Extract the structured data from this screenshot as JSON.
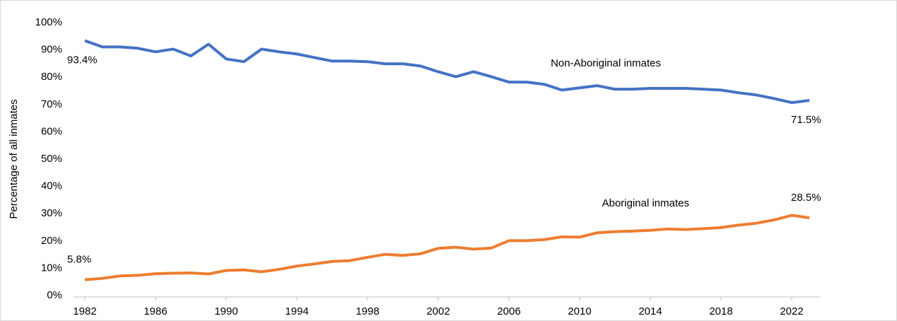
{
  "chart_data": {
    "type": "line",
    "y_label": "Percentage of all inmates",
    "x": [
      1982,
      1983,
      1984,
      1985,
      1986,
      1987,
      1988,
      1989,
      1990,
      1991,
      1992,
      1993,
      1994,
      1995,
      1996,
      1997,
      1998,
      1999,
      2000,
      2001,
      2002,
      2003,
      2004,
      2005,
      2006,
      2007,
      2008,
      2009,
      2010,
      2011,
      2012,
      2013,
      2014,
      2015,
      2016,
      2017,
      2018,
      2019,
      2020,
      2021,
      2022,
      2023
    ],
    "series": [
      {
        "name": "Non-Aboriginal inmates",
        "color": "#4472c4",
        "values": [
          93.4,
          91.1,
          91.1,
          90.6,
          89.3,
          90.3,
          87.8,
          92.1,
          86.7,
          85.7,
          90.3,
          89.3,
          88.5,
          87.2,
          85.9,
          85.9,
          85.7,
          84.9,
          84.9,
          84.1,
          82.0,
          80.2,
          82.0,
          80.2,
          78.2,
          78.2,
          77.4,
          75.3,
          76.1,
          76.9,
          75.6,
          75.6,
          75.9,
          75.9,
          75.9,
          75.6,
          75.3,
          74.3,
          73.5,
          72.2,
          70.7,
          71.5
        ],
        "value_labels": [
          "93.4%",
          null,
          null,
          null,
          null,
          null,
          null,
          null,
          null,
          null,
          null,
          null,
          null,
          null,
          null,
          null,
          null,
          null,
          null,
          null,
          null,
          null,
          null,
          null,
          null,
          null,
          null,
          null,
          null,
          null,
          null,
          null,
          null,
          null,
          null,
          null,
          null,
          null,
          null,
          null,
          null,
          "71.5%"
        ]
      },
      {
        "name": "Aboriginal inmates",
        "color": "#ed7d31",
        "values": [
          5.8,
          6.3,
          7.2,
          7.4,
          8.0,
          8.2,
          8.3,
          7.9,
          9.2,
          9.4,
          8.7,
          9.6,
          10.8,
          11.6,
          12.5,
          12.8,
          14.0,
          15.1,
          14.7,
          15.3,
          17.3,
          17.7,
          17.0,
          17.4,
          20.1,
          20.1,
          20.5,
          21.5,
          21.4,
          23.0,
          23.4,
          23.6,
          23.9,
          24.4,
          24.2,
          24.5,
          24.9,
          25.8,
          26.5,
          27.7,
          29.4,
          28.5
        ],
        "value_labels": [
          "5.8%",
          null,
          null,
          null,
          null,
          null,
          null,
          null,
          null,
          null,
          null,
          null,
          null,
          null,
          null,
          null,
          null,
          null,
          null,
          null,
          null,
          null,
          null,
          null,
          null,
          null,
          null,
          null,
          null,
          null,
          null,
          null,
          null,
          null,
          null,
          null,
          null,
          null,
          null,
          null,
          null,
          "28.5%"
        ]
      }
    ],
    "xlim": [
      1981.4,
      2023.6
    ],
    "xticks": [
      1982,
      1986,
      1990,
      1994,
      1998,
      2002,
      2006,
      2010,
      2014,
      2018,
      2022
    ],
    "ylim": [
      0,
      100
    ],
    "yticks": [
      {
        "value": 0,
        "label": "0%"
      },
      {
        "value": 10,
        "label": "10%"
      },
      {
        "value": 20,
        "label": "20%"
      },
      {
        "value": 30,
        "label": "30%"
      },
      {
        "value": 40,
        "label": "40%"
      },
      {
        "value": 50,
        "label": "50%"
      },
      {
        "value": 60,
        "label": "60%"
      },
      {
        "value": 70,
        "label": "70%"
      },
      {
        "value": 80,
        "label": "80%"
      },
      {
        "value": 90,
        "label": "90%"
      },
      {
        "value": 100,
        "label": "100%"
      }
    ],
    "grid": false
  }
}
